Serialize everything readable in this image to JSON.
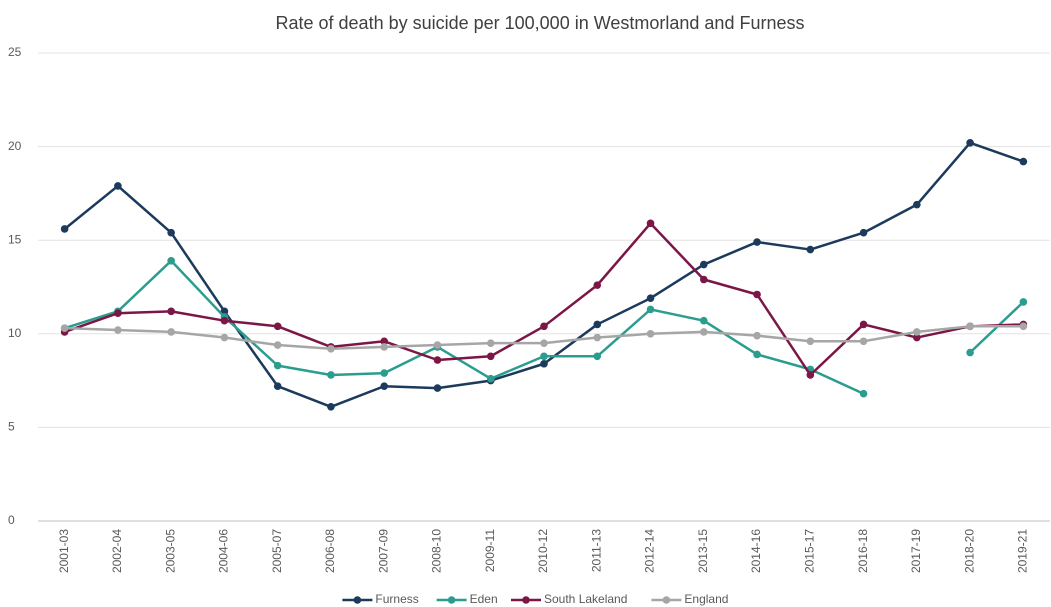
{
  "chart_data": {
    "type": "line",
    "title": "Rate of death by suicide per 100,000 in Westmorland and Furness",
    "categories": [
      "2001-03",
      "2002-04",
      "2003-05",
      "2004-06",
      "2005-07",
      "2006-08",
      "2007-09",
      "2008-10",
      "2009-11",
      "2010-12",
      "2011-13",
      "2012-14",
      "2013-15",
      "2014-16",
      "2015-17",
      "2016-18",
      "2017-19",
      "2018-20",
      "2019-21"
    ],
    "series": [
      {
        "name": "Furness",
        "color": "#1b3a5c",
        "values": [
          15.6,
          17.9,
          15.4,
          11.2,
          7.2,
          6.1,
          7.2,
          7.1,
          7.5,
          8.4,
          10.5,
          11.9,
          13.7,
          14.9,
          14.5,
          15.4,
          16.9,
          20.2,
          19.2
        ]
      },
      {
        "name": "Eden",
        "color": "#2a9d8f",
        "values": [
          10.3,
          11.2,
          13.9,
          10.9,
          8.3,
          7.8,
          7.9,
          9.3,
          7.6,
          8.8,
          8.8,
          11.3,
          10.7,
          8.9,
          8.1,
          6.8,
          null,
          9.0,
          11.7
        ]
      },
      {
        "name": "South Lakeland",
        "color": "#7b1646",
        "values": [
          10.1,
          11.1,
          11.2,
          10.7,
          10.4,
          9.3,
          9.6,
          8.6,
          8.8,
          10.4,
          12.6,
          15.9,
          12.9,
          12.1,
          7.8,
          10.5,
          9.8,
          10.4,
          10.5
        ]
      },
      {
        "name": "England",
        "color": "#a6a6a6",
        "values": [
          10.3,
          10.2,
          10.1,
          9.8,
          9.4,
          9.2,
          9.3,
          9.4,
          9.5,
          9.5,
          9.8,
          10.0,
          10.1,
          9.9,
          9.6,
          9.6,
          10.1,
          10.4,
          10.4
        ]
      }
    ],
    "ylim": [
      0,
      25
    ],
    "yticks": [
      0,
      5,
      10,
      15,
      20,
      25
    ],
    "grid": true,
    "legend": "bottom"
  }
}
